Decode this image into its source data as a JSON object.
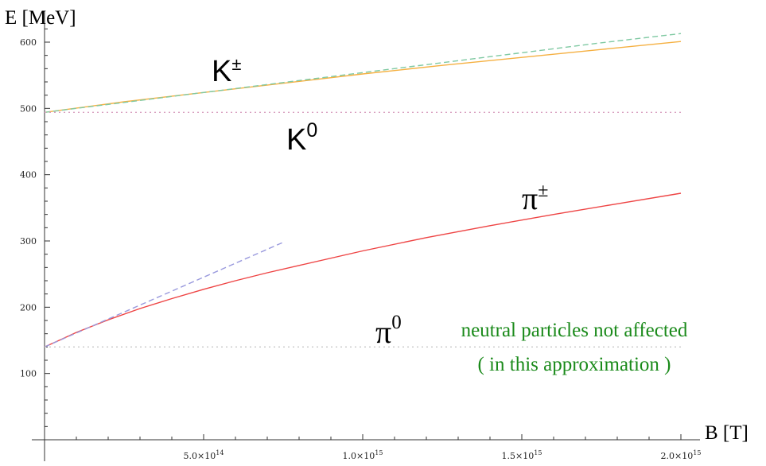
{
  "chart_data": {
    "type": "line",
    "xlabel": "B [T]",
    "ylabel": "E [MeV]",
    "xlim": [
      0,
      2000000000000000.0
    ],
    "ylim": [
      0,
      630
    ],
    "x_ticks": [
      500000000000000.0,
      1000000000000000.0,
      1500000000000000.0,
      2000000000000000.0
    ],
    "x_tick_labels": [
      "5.0×10^14",
      "1.0×10^15",
      "1.5×10^15",
      "2.0×10^15"
    ],
    "y_ticks": [
      100,
      200,
      300,
      400,
      500,
      600
    ],
    "y_tick_labels": [
      "100",
      "200",
      "300",
      "400",
      "500",
      "600"
    ],
    "grid": false,
    "series": [
      {
        "label": "K±",
        "color": "#f5b041",
        "dash": "solid",
        "x": [
          0,
          250000000000000.0,
          500000000000000.0,
          750000000000000.0,
          1000000000000000.0,
          1250000000000000.0,
          1500000000000000.0,
          1750000000000000.0,
          2000000000000000.0
        ],
        "y": [
          494,
          510,
          524,
          538,
          552,
          565,
          577,
          589,
          601
        ]
      },
      {
        "label": "",
        "color": "#7fc9a2",
        "dash": "dashed",
        "x": [
          0,
          250000000000000.0,
          500000000000000.0,
          750000000000000.0,
          1000000000000000.0,
          1250000000000000.0,
          1500000000000000.0,
          1750000000000000.0,
          2000000000000000.0
        ],
        "y": [
          494,
          509,
          524,
          539,
          554,
          569,
          584,
          599,
          613
        ]
      },
      {
        "label": "K0",
        "color": "#d9a0c0",
        "dash": "dotted",
        "x": [
          0,
          2000000000000000.0
        ],
        "y": [
          494,
          494
        ]
      },
      {
        "label": "π±",
        "color": "#ee4444",
        "dash": "solid",
        "x": [
          0,
          50000000000000.0,
          100000000000000.0,
          200000000000000.0,
          300000000000000.0,
          400000000000000.0,
          500000000000000.0,
          600000000000000.0,
          700000000000000.0,
          800000000000000.0,
          1000000000000000.0,
          1200000000000000.0,
          1400000000000000.0,
          1600000000000000.0,
          1800000000000000.0,
          2000000000000000.0
        ],
        "y": [
          140,
          151,
          162,
          181,
          198,
          213,
          227,
          240,
          252,
          263,
          285,
          305,
          323,
          340,
          356,
          372
        ]
      },
      {
        "label": "",
        "color": "#9999dd",
        "dash": "dashed",
        "x": [
          0,
          750000000000000.0
        ],
        "y": [
          140,
          298
        ]
      },
      {
        "label": "π0",
        "color": "#c8c8c8",
        "dash": "dotted",
        "x": [
          0,
          2000000000000000.0
        ],
        "y": [
          140,
          140
        ]
      }
    ],
    "labels": {
      "k_charged": {
        "base": "K",
        "sup": "±"
      },
      "k_neutral": {
        "base": "K",
        "sup": "0"
      },
      "pi_charged": {
        "base": "π",
        "sup": "±"
      },
      "pi_neutral": {
        "base": "π",
        "sup": "0"
      }
    },
    "annotations": [
      "neutral particles not affected",
      "( in this approximation )"
    ]
  }
}
